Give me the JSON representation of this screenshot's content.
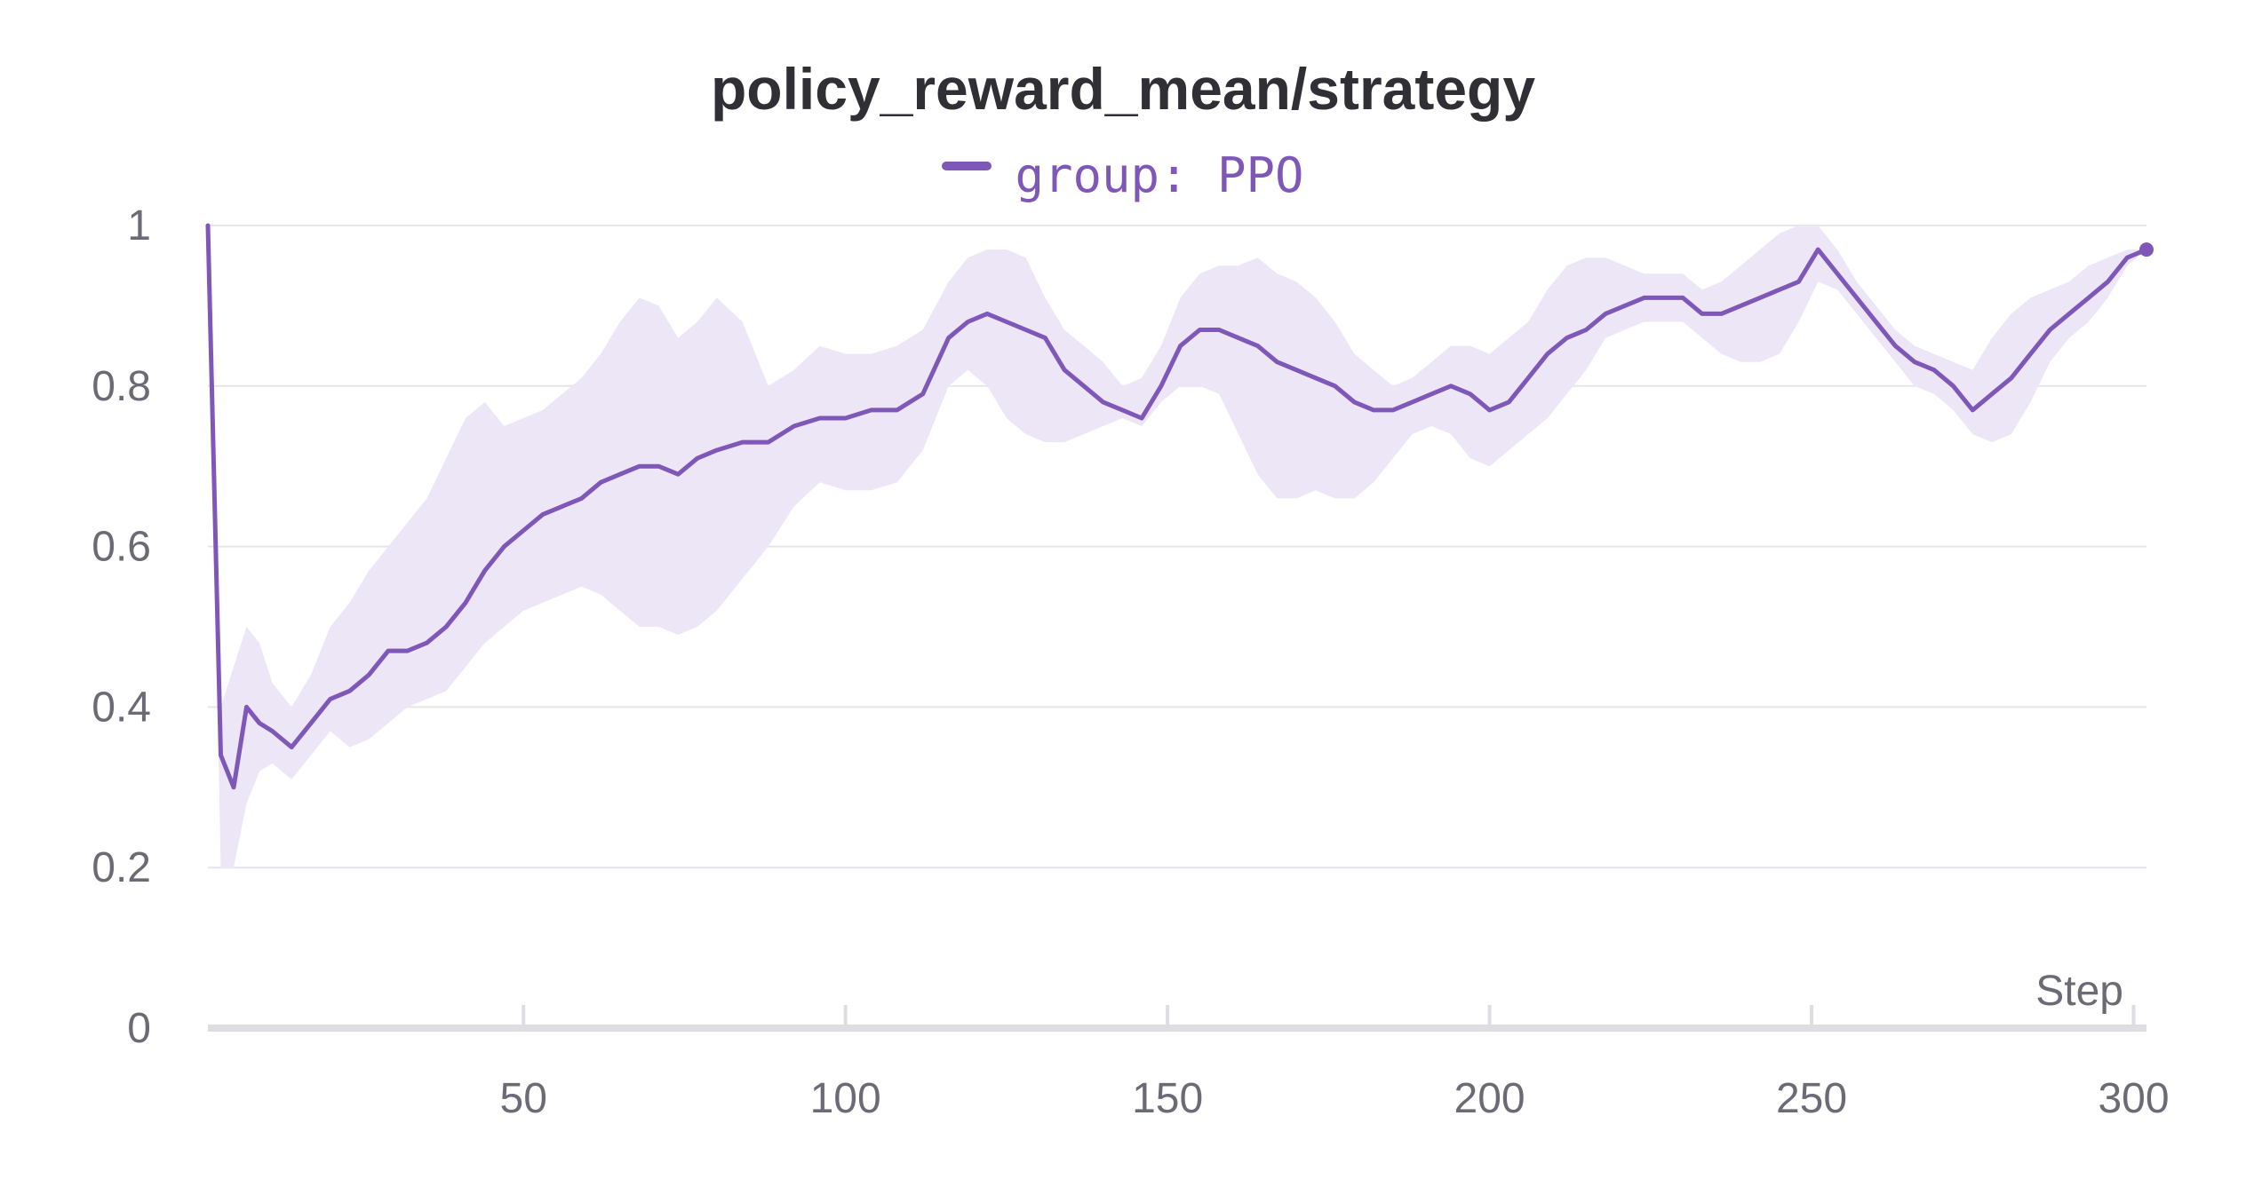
{
  "chart_data": {
    "type": "line",
    "title": "policy_reward_mean/strategy",
    "xlabel": "Step",
    "ylabel": "",
    "xlim": [
      1,
      302
    ],
    "ylim": [
      0,
      1
    ],
    "x_ticks": [
      "50",
      "100",
      "150",
      "200",
      "250",
      "300"
    ],
    "x_tick_values": [
      50,
      100,
      150,
      200,
      250,
      300
    ],
    "y_ticks": [
      "0",
      "0.2",
      "0.4",
      "0.6",
      "0.8",
      "1"
    ],
    "y_tick_values": [
      0,
      0.2,
      0.4,
      0.6,
      0.8,
      1
    ],
    "grid": true,
    "legend_position": "top-center",
    "colors": {
      "line": "#7e57b8",
      "band": "#ece6f6",
      "grid": "#e6e6ea",
      "axis": "#dedee2"
    },
    "series": [
      {
        "name": "group: PPO",
        "x": [
          1,
          3,
          5,
          7,
          9,
          11,
          14,
          17,
          20,
          23,
          26,
          29,
          32,
          35,
          38,
          41,
          44,
          47,
          50,
          53,
          56,
          59,
          62,
          65,
          68,
          71,
          74,
          77,
          80,
          84,
          88,
          92,
          96,
          100,
          104,
          108,
          112,
          116,
          119,
          122,
          125,
          128,
          131,
          134,
          137,
          140,
          143,
          146,
          149,
          152,
          155,
          158,
          161,
          164,
          167,
          170,
          173,
          176,
          179,
          182,
          185,
          188,
          191,
          194,
          197,
          200,
          203,
          206,
          209,
          212,
          215,
          218,
          221,
          224,
          227,
          230,
          233,
          236,
          239,
          242,
          245,
          248,
          251,
          254,
          257,
          260,
          263,
          266,
          269,
          272,
          275,
          278,
          281,
          284,
          287,
          290,
          293,
          296,
          299,
          302
        ],
        "y": [
          1.0,
          0.34,
          0.3,
          0.4,
          0.38,
          0.37,
          0.35,
          0.38,
          0.41,
          0.42,
          0.44,
          0.47,
          0.47,
          0.48,
          0.5,
          0.53,
          0.57,
          0.6,
          0.62,
          0.64,
          0.65,
          0.66,
          0.68,
          0.69,
          0.7,
          0.7,
          0.69,
          0.71,
          0.72,
          0.73,
          0.73,
          0.75,
          0.76,
          0.76,
          0.77,
          0.77,
          0.79,
          0.86,
          0.88,
          0.89,
          0.88,
          0.87,
          0.86,
          0.82,
          0.8,
          0.78,
          0.77,
          0.76,
          0.8,
          0.85,
          0.87,
          0.87,
          0.86,
          0.85,
          0.83,
          0.82,
          0.81,
          0.8,
          0.78,
          0.77,
          0.77,
          0.78,
          0.79,
          0.8,
          0.79,
          0.77,
          0.78,
          0.81,
          0.84,
          0.86,
          0.87,
          0.89,
          0.9,
          0.91,
          0.91,
          0.91,
          0.89,
          0.89,
          0.9,
          0.91,
          0.92,
          0.93,
          0.97,
          0.94,
          0.91,
          0.88,
          0.85,
          0.83,
          0.82,
          0.8,
          0.77,
          0.79,
          0.81,
          0.84,
          0.87,
          0.89,
          0.91,
          0.93,
          0.96,
          0.97
        ],
        "y_lower": [
          1.0,
          0.2,
          0.2,
          0.28,
          0.32,
          0.33,
          0.31,
          0.34,
          0.37,
          0.35,
          0.36,
          0.38,
          0.4,
          0.41,
          0.42,
          0.45,
          0.48,
          0.5,
          0.52,
          0.53,
          0.54,
          0.55,
          0.54,
          0.52,
          0.5,
          0.5,
          0.49,
          0.5,
          0.52,
          0.56,
          0.6,
          0.65,
          0.68,
          0.67,
          0.67,
          0.68,
          0.72,
          0.8,
          0.82,
          0.8,
          0.76,
          0.74,
          0.73,
          0.73,
          0.74,
          0.75,
          0.76,
          0.75,
          0.78,
          0.8,
          0.8,
          0.79,
          0.74,
          0.69,
          0.66,
          0.66,
          0.67,
          0.66,
          0.66,
          0.68,
          0.71,
          0.74,
          0.75,
          0.74,
          0.71,
          0.7,
          0.72,
          0.74,
          0.76,
          0.79,
          0.82,
          0.86,
          0.87,
          0.88,
          0.88,
          0.88,
          0.86,
          0.84,
          0.83,
          0.83,
          0.84,
          0.88,
          0.93,
          0.92,
          0.89,
          0.86,
          0.83,
          0.8,
          0.79,
          0.77,
          0.74,
          0.73,
          0.74,
          0.78,
          0.83,
          0.86,
          0.88,
          0.91,
          0.95,
          0.97
        ],
        "y_upper": [
          1.0,
          0.4,
          0.45,
          0.5,
          0.48,
          0.43,
          0.4,
          0.44,
          0.5,
          0.53,
          0.57,
          0.6,
          0.63,
          0.66,
          0.71,
          0.76,
          0.78,
          0.75,
          0.76,
          0.77,
          0.79,
          0.81,
          0.84,
          0.88,
          0.91,
          0.9,
          0.86,
          0.88,
          0.91,
          0.88,
          0.8,
          0.82,
          0.85,
          0.84,
          0.84,
          0.85,
          0.87,
          0.93,
          0.96,
          0.97,
          0.97,
          0.96,
          0.91,
          0.87,
          0.85,
          0.83,
          0.8,
          0.81,
          0.85,
          0.91,
          0.94,
          0.95,
          0.95,
          0.96,
          0.94,
          0.93,
          0.91,
          0.88,
          0.84,
          0.82,
          0.8,
          0.81,
          0.83,
          0.85,
          0.85,
          0.84,
          0.86,
          0.88,
          0.92,
          0.95,
          0.96,
          0.96,
          0.95,
          0.94,
          0.94,
          0.94,
          0.92,
          0.93,
          0.95,
          0.97,
          0.99,
          1.0,
          1.0,
          0.97,
          0.93,
          0.9,
          0.87,
          0.85,
          0.84,
          0.83,
          0.82,
          0.86,
          0.89,
          0.91,
          0.92,
          0.93,
          0.95,
          0.96,
          0.97,
          0.97
        ]
      }
    ]
  }
}
